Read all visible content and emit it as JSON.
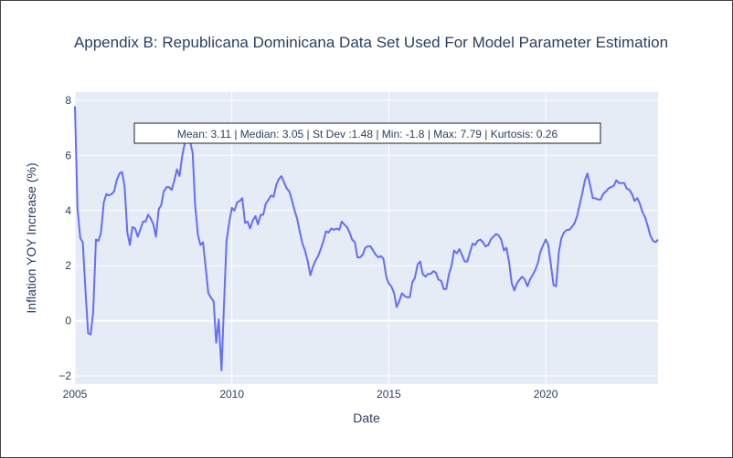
{
  "chart_data": {
    "type": "line",
    "title": "Appendix B: Republicana Dominicana Data Set Used For Model Parameter Estimation",
    "xlabel": "Date",
    "ylabel": "Inflation YOY Increase (%)",
    "xlim": [
      2005.0,
      2023.58
    ],
    "ylim": [
      -2.3,
      8.3
    ],
    "x_ticks": [
      2005,
      2010,
      2015,
      2020
    ],
    "y_ticks": [
      -2,
      0,
      2,
      4,
      6,
      8
    ],
    "y_tick_labels": [
      "−2",
      "0",
      "2",
      "4",
      "6",
      "8"
    ],
    "grid": true,
    "annotation": "Mean: 3.11 | Median: 3.05 | St Dev :1.48 | Min: -1.8 | Max: 7.79 | Kurtosis: 0.26",
    "series": [
      {
        "color": "#636efa",
        "x": [
          2005.0,
          2005.08,
          2005.17,
          2005.25,
          2005.33,
          2005.42,
          2005.5,
          2005.58,
          2005.67,
          2005.75,
          2005.83,
          2005.92,
          2006.0,
          2006.08,
          2006.17,
          2006.25,
          2006.33,
          2006.42,
          2006.5,
          2006.58,
          2006.67,
          2006.75,
          2006.83,
          2006.92,
          2007.0,
          2007.08,
          2007.17,
          2007.25,
          2007.33,
          2007.42,
          2007.5,
          2007.58,
          2007.67,
          2007.75,
          2007.83,
          2007.92,
          2008.0,
          2008.08,
          2008.17,
          2008.25,
          2008.33,
          2008.42,
          2008.5,
          2008.58,
          2008.67,
          2008.75,
          2008.83,
          2008.92,
          2009.0,
          2009.08,
          2009.17,
          2009.25,
          2009.33,
          2009.42,
          2009.5,
          2009.58,
          2009.67,
          2009.75,
          2009.83,
          2009.92,
          2010.0,
          2010.08,
          2010.17,
          2010.25,
          2010.33,
          2010.42,
          2010.5,
          2010.58,
          2010.67,
          2010.75,
          2010.83,
          2010.92,
          2011.0,
          2011.08,
          2011.17,
          2011.25,
          2011.33,
          2011.42,
          2011.5,
          2011.58,
          2011.67,
          2011.75,
          2011.83,
          2011.92,
          2012.0,
          2012.08,
          2012.17,
          2012.25,
          2012.33,
          2012.42,
          2012.5,
          2012.58,
          2012.67,
          2012.75,
          2012.83,
          2012.92,
          2013.0,
          2013.08,
          2013.17,
          2013.25,
          2013.33,
          2013.42,
          2013.5,
          2013.58,
          2013.67,
          2013.75,
          2013.83,
          2013.92,
          2014.0,
          2014.08,
          2014.17,
          2014.25,
          2014.33,
          2014.42,
          2014.5,
          2014.58,
          2014.67,
          2014.75,
          2014.83,
          2014.92,
          2015.0,
          2015.08,
          2015.17,
          2015.25,
          2015.33,
          2015.42,
          2015.5,
          2015.58,
          2015.67,
          2015.75,
          2015.83,
          2015.92,
          2016.0,
          2016.08,
          2016.17,
          2016.25,
          2016.33,
          2016.42,
          2016.5,
          2016.58,
          2016.67,
          2016.75,
          2016.83,
          2016.92,
          2017.0,
          2017.08,
          2017.17,
          2017.25,
          2017.33,
          2017.42,
          2017.5,
          2017.58,
          2017.67,
          2017.75,
          2017.83,
          2017.92,
          2018.0,
          2018.08,
          2018.17,
          2018.25,
          2018.33,
          2018.42,
          2018.5,
          2018.58,
          2018.67,
          2018.75,
          2018.83,
          2018.92,
          2019.0,
          2019.08,
          2019.17,
          2019.25,
          2019.33,
          2019.42,
          2019.5,
          2019.58,
          2019.67,
          2019.75,
          2019.83,
          2019.92,
          2020.0,
          2020.08,
          2020.17,
          2020.25,
          2020.33,
          2020.42,
          2020.5,
          2020.58,
          2020.67,
          2020.75,
          2020.83,
          2020.92,
          2021.0,
          2021.08,
          2021.17,
          2021.25,
          2021.33,
          2021.42,
          2021.5,
          2021.58,
          2021.67,
          2021.75,
          2021.83,
          2021.92,
          2022.0,
          2022.08,
          2022.17,
          2022.25,
          2022.33,
          2022.42,
          2022.5,
          2022.58,
          2022.67,
          2022.75,
          2022.83,
          2022.92,
          2023.0,
          2023.08,
          2023.17,
          2023.25,
          2023.33,
          2023.42,
          2023.5,
          2023.58
        ],
        "y": [
          7.79,
          4.1,
          3.0,
          2.85,
          1.2,
          -0.45,
          -0.5,
          0.3,
          2.95,
          2.9,
          3.2,
          4.3,
          4.6,
          4.55,
          4.6,
          4.7,
          5.1,
          5.35,
          5.4,
          4.9,
          3.2,
          2.75,
          3.4,
          3.35,
          3.05,
          3.3,
          3.6,
          3.6,
          3.85,
          3.7,
          3.5,
          3.05,
          4.05,
          4.2,
          4.7,
          4.85,
          4.85,
          4.75,
          5.1,
          5.5,
          5.25,
          6.0,
          6.45,
          6.6,
          6.5,
          6.1,
          4.2,
          3.1,
          2.75,
          2.85,
          1.9,
          1.0,
          0.85,
          0.7,
          -0.8,
          0.05,
          -1.8,
          0.6,
          2.9,
          3.6,
          4.1,
          4.0,
          4.3,
          4.35,
          4.45,
          3.55,
          3.6,
          3.35,
          3.65,
          3.8,
          3.5,
          3.85,
          3.85,
          4.25,
          4.4,
          4.55,
          4.5,
          4.95,
          5.15,
          5.25,
          5.0,
          4.8,
          4.7,
          4.35,
          4.0,
          3.7,
          3.2,
          2.8,
          2.55,
          2.15,
          1.65,
          1.95,
          2.2,
          2.35,
          2.6,
          2.9,
          3.25,
          3.2,
          3.35,
          3.3,
          3.35,
          3.3,
          3.6,
          3.5,
          3.4,
          3.2,
          2.95,
          2.85,
          2.3,
          2.3,
          2.4,
          2.65,
          2.7,
          2.7,
          2.55,
          2.4,
          2.3,
          2.35,
          2.25,
          1.6,
          1.35,
          1.25,
          1.0,
          0.5,
          0.7,
          1.0,
          0.9,
          0.85,
          0.85,
          1.4,
          1.55,
          2.05,
          2.15,
          1.7,
          1.6,
          1.7,
          1.7,
          1.8,
          1.75,
          1.5,
          1.45,
          1.15,
          1.15,
          1.7,
          2.0,
          2.55,
          2.45,
          2.6,
          2.4,
          2.15,
          2.15,
          2.45,
          2.8,
          2.75,
          2.9,
          2.95,
          2.85,
          2.7,
          2.75,
          2.95,
          3.05,
          3.15,
          3.1,
          2.95,
          2.55,
          2.65,
          2.15,
          1.35,
          1.1,
          1.35,
          1.5,
          1.6,
          1.5,
          1.25,
          1.5,
          1.65,
          1.85,
          2.1,
          2.5,
          2.75,
          2.95,
          2.75,
          2.0,
          1.3,
          1.25,
          2.5,
          3.0,
          3.2,
          3.3,
          3.3,
          3.4,
          3.55,
          3.8,
          4.2,
          4.65,
          5.1,
          5.35,
          4.9,
          4.45,
          4.45,
          4.4,
          4.4,
          4.6,
          4.7,
          4.8,
          4.85,
          4.9,
          5.1,
          5.0,
          5.0,
          5.0,
          4.8,
          4.75,
          4.6,
          4.35,
          4.45,
          4.25,
          3.95,
          3.75,
          3.45,
          3.1,
          2.9,
          2.85,
          2.95
        ]
      }
    ]
  }
}
